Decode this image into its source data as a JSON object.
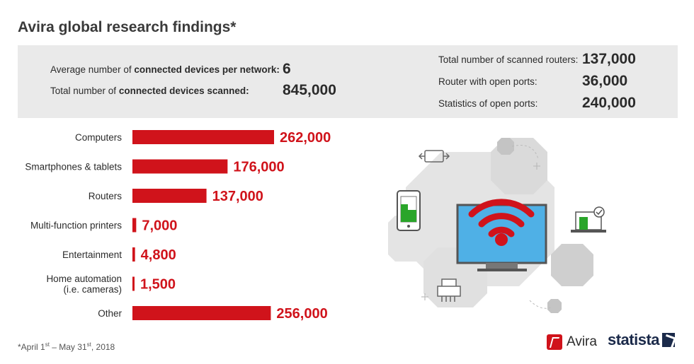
{
  "title": "Avira global research findings*",
  "stats": {
    "avg_devices_label_pre": "Average number of ",
    "avg_devices_label_bold": "connected devices per network:",
    "avg_devices_value": "6",
    "total_devices_label_pre": "Total number of ",
    "total_devices_label_bold": "connected devices scanned:",
    "total_devices_value": "845,000",
    "routers_label": "Total number of scanned routers:",
    "routers_value": "137,000",
    "open_ports_label": "Router with open ports:",
    "open_ports_value": "36,000",
    "port_stats_label": "Statistics of open ports:",
    "port_stats_value": "240,000"
  },
  "chart_data": {
    "type": "bar",
    "orientation": "horizontal",
    "categories": [
      [
        "Computers"
      ],
      [
        "Smartphones & tablets"
      ],
      [
        "Routers"
      ],
      [
        "Multi-function printers"
      ],
      [
        "Entertainment"
      ],
      [
        "Home automation",
        "(i.e. cameras)"
      ],
      [
        "Other"
      ]
    ],
    "values": [
      262000,
      176000,
      137000,
      7000,
      4800,
      1500,
      256000
    ],
    "value_labels": [
      "262,000",
      "176,000",
      "137,000",
      "7,000",
      "4,800",
      "1,500",
      "256,000"
    ],
    "xlim": [
      0,
      262000
    ],
    "bar_color": "#d0131b",
    "grid": false
  },
  "colors": {
    "accent": "#d0131b",
    "panel_bg": "#eaeaea",
    "illustration_gray": "#d7d7d7",
    "screen_blue": "#4fb0e6"
  },
  "footnote": {
    "pre": "*April 1",
    "sup1": "st",
    "mid": " – May 31",
    "sup2": "st",
    "post": ", 2018"
  },
  "logos": {
    "avira": "Avira",
    "statista": "statista"
  }
}
